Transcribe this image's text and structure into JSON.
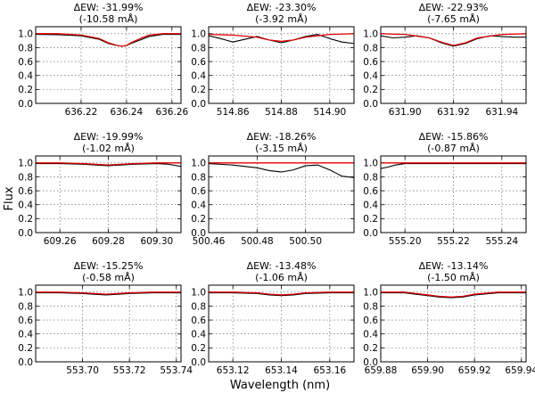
{
  "figure": {
    "ylabel": "Flux",
    "xlabel": "Wavelength (nm)"
  },
  "colors": {
    "observed": "#000000",
    "model": "#dd0000",
    "grid": "#555555",
    "axes": "#000000"
  },
  "chart_data": [
    {
      "type": "line",
      "title_line1": "ΔEW: -31.99%",
      "title_line2": "(-10.58 mÅ)",
      "xlim": [
        636.2,
        636.264
      ],
      "ylim": [
        0.0,
        1.1
      ],
      "xticks": [
        "636.22",
        "636.24",
        "636.26"
      ],
      "yticks": [
        "0.0",
        "0.2",
        "0.4",
        "0.6",
        "0.8",
        "1.0"
      ],
      "grid": true,
      "series": [
        {
          "x": [
            636.2,
            636.21,
            636.22,
            636.228,
            636.232,
            636.236,
            636.238,
            636.24,
            636.242,
            636.246,
            636.25,
            636.256,
            636.264
          ],
          "y": [
            0.99,
            0.985,
            0.97,
            0.92,
            0.86,
            0.83,
            0.82,
            0.83,
            0.86,
            0.91,
            0.96,
            0.99,
            0.99
          ]
        },
        {
          "x": [
            636.2,
            636.21,
            636.22,
            636.228,
            636.232,
            636.236,
            636.238,
            636.24,
            636.242,
            636.246,
            636.25,
            636.256,
            636.264
          ],
          "y": [
            1.0,
            1.0,
            0.98,
            0.93,
            0.87,
            0.83,
            0.82,
            0.83,
            0.87,
            0.93,
            0.98,
            1.0,
            1.0
          ]
        }
      ]
    },
    {
      "type": "line",
      "title_line1": "ΔEW: -23.30%",
      "title_line2": "(-3.92 mÅ)",
      "xlim": [
        514.85,
        514.91
      ],
      "ylim": [
        0.0,
        1.1
      ],
      "xticks": [
        "514.86",
        "514.88",
        "514.90"
      ],
      "yticks": [
        "0.0",
        "0.2",
        "0.4",
        "0.6",
        "0.8",
        "1.0"
      ],
      "grid": true,
      "series": [
        {
          "x": [
            514.85,
            514.855,
            514.86,
            514.865,
            514.87,
            514.875,
            514.88,
            514.885,
            514.89,
            514.895,
            514.9,
            514.905,
            514.91
          ],
          "y": [
            0.97,
            0.93,
            0.88,
            0.92,
            0.96,
            0.91,
            0.87,
            0.91,
            0.96,
            0.99,
            0.93,
            0.88,
            0.86
          ]
        },
        {
          "x": [
            514.85,
            514.86,
            514.87,
            514.875,
            514.88,
            514.885,
            514.89,
            514.9,
            514.91
          ],
          "y": [
            0.99,
            0.98,
            0.95,
            0.91,
            0.89,
            0.91,
            0.95,
            0.99,
            1.0
          ]
        }
      ]
    },
    {
      "type": "line",
      "title_line1": "ΔEW: -22.93%",
      "title_line2": "(-7.65 mÅ)",
      "xlim": [
        631.89,
        631.95
      ],
      "ylim": [
        0.0,
        1.1
      ],
      "xticks": [
        "631.90",
        "631.92",
        "631.94"
      ],
      "yticks": [
        "0.0",
        "0.2",
        "0.4",
        "0.6",
        "0.8",
        "1.0"
      ],
      "grid": true,
      "series": [
        {
          "x": [
            631.89,
            631.895,
            631.9,
            631.905,
            631.91,
            631.915,
            631.92,
            631.925,
            631.93,
            631.935,
            631.94,
            631.945,
            631.95
          ],
          "y": [
            0.97,
            0.94,
            0.95,
            0.97,
            0.94,
            0.87,
            0.82,
            0.86,
            0.93,
            0.97,
            0.96,
            0.95,
            0.95
          ]
        },
        {
          "x": [
            631.89,
            631.9,
            631.91,
            631.915,
            631.92,
            631.925,
            631.93,
            631.94,
            631.95
          ],
          "y": [
            1.0,
            0.99,
            0.94,
            0.88,
            0.83,
            0.87,
            0.94,
            0.99,
            1.0
          ]
        }
      ]
    },
    {
      "type": "line",
      "title_line1": "ΔEW: -19.99%",
      "title_line2": "(-1.02 mÅ)",
      "xlim": [
        609.25,
        609.31
      ],
      "ylim": [
        0.0,
        1.1
      ],
      "xticks": [
        "609.26",
        "609.28",
        "609.30"
      ],
      "yticks": [
        "0.0",
        "0.2",
        "0.4",
        "0.6",
        "0.8",
        "1.0"
      ],
      "grid": true,
      "series": [
        {
          "x": [
            609.25,
            609.26,
            609.27,
            609.275,
            609.28,
            609.285,
            609.29,
            609.3,
            609.305,
            609.31
          ],
          "y": [
            0.99,
            0.99,
            0.98,
            0.97,
            0.96,
            0.97,
            0.98,
            0.99,
            0.98,
            0.95
          ]
        },
        {
          "x": [
            609.25,
            609.26,
            609.27,
            609.275,
            609.28,
            609.285,
            609.29,
            609.3,
            609.31
          ],
          "y": [
            1.0,
            1.0,
            0.99,
            0.98,
            0.97,
            0.98,
            0.99,
            1.0,
            1.0
          ]
        }
      ]
    },
    {
      "type": "line",
      "title_line1": "ΔEW: -18.26%",
      "title_line2": "(-3.15 mÅ)",
      "xlim": [
        500.46,
        500.52
      ],
      "ylim": [
        0.0,
        1.1
      ],
      "xticks": [
        "500.46",
        "500.48",
        "500.50"
      ],
      "yticks": [
        "0.0",
        "0.2",
        "0.4",
        "0.6",
        "0.8",
        "1.0"
      ],
      "grid": true,
      "series": [
        {
          "x": [
            500.46,
            500.465,
            500.47,
            500.48,
            500.485,
            500.49,
            500.495,
            500.5,
            500.505,
            500.51,
            500.515,
            500.52
          ],
          "y": [
            0.99,
            0.98,
            0.97,
            0.93,
            0.89,
            0.87,
            0.9,
            0.96,
            0.97,
            0.9,
            0.81,
            0.79
          ]
        },
        {
          "x": [
            500.46,
            500.47,
            500.48,
            500.49,
            500.5,
            500.51,
            500.52
          ],
          "y": [
            1.0,
            1.0,
            1.0,
            1.0,
            1.0,
            1.0,
            1.0
          ]
        }
      ]
    },
    {
      "type": "line",
      "title_line1": "ΔEW: -15.86%",
      "title_line2": "(-0.87 mÅ)",
      "xlim": [
        555.19,
        555.25
      ],
      "ylim": [
        0.0,
        1.1
      ],
      "xticks": [
        "555.20",
        "555.22",
        "555.24"
      ],
      "yticks": [
        "0.0",
        "0.2",
        "0.4",
        "0.6",
        "0.8",
        "1.0"
      ],
      "grid": true,
      "series": [
        {
          "x": [
            555.19,
            555.193,
            555.196,
            555.2,
            555.205,
            555.21,
            555.22,
            555.23,
            555.24,
            555.25
          ],
          "y": [
            0.92,
            0.94,
            0.97,
            0.99,
            0.99,
            0.99,
            0.99,
            0.99,
            0.99,
            0.99
          ]
        },
        {
          "x": [
            555.19,
            555.2,
            555.21,
            555.22,
            555.23,
            555.24,
            555.25
          ],
          "y": [
            1.0,
            1.0,
            1.0,
            1.0,
            1.0,
            1.0,
            1.0
          ]
        }
      ]
    },
    {
      "type": "line",
      "title_line1": "ΔEW: -15.25%",
      "title_line2": "(-0.58 mÅ)",
      "xlim": [
        553.68,
        553.742
      ],
      "ylim": [
        0.0,
        1.1
      ],
      "xticks": [
        "553.70",
        "553.72",
        "553.74"
      ],
      "yticks": [
        "0.0",
        "0.2",
        "0.4",
        "0.6",
        "0.8",
        "1.0"
      ],
      "grid": true,
      "series": [
        {
          "x": [
            553.68,
            553.69,
            553.7,
            553.705,
            553.71,
            553.715,
            553.72,
            553.73,
            553.742
          ],
          "y": [
            0.99,
            0.99,
            0.98,
            0.97,
            0.96,
            0.97,
            0.98,
            0.99,
            0.99
          ]
        },
        {
          "x": [
            553.68,
            553.69,
            553.7,
            553.705,
            553.71,
            553.715,
            553.72,
            553.73,
            553.742
          ],
          "y": [
            1.0,
            1.0,
            0.99,
            0.98,
            0.97,
            0.98,
            0.99,
            1.0,
            1.0
          ]
        }
      ]
    },
    {
      "type": "line",
      "title_line1": "ΔEW: -13.48%",
      "title_line2": "(-1.06 mÅ)",
      "xlim": [
        653.11,
        653.17
      ],
      "ylim": [
        0.0,
        1.1
      ],
      "xticks": [
        "653.12",
        "653.14",
        "653.16"
      ],
      "yticks": [
        "0.0",
        "0.2",
        "0.4",
        "0.6",
        "0.8",
        "1.0"
      ],
      "grid": true,
      "series": [
        {
          "x": [
            653.11,
            653.12,
            653.13,
            653.135,
            653.14,
            653.145,
            653.15,
            653.16,
            653.17
          ],
          "y": [
            0.99,
            0.99,
            0.98,
            0.96,
            0.95,
            0.96,
            0.98,
            0.99,
            0.99
          ]
        },
        {
          "x": [
            653.11,
            653.12,
            653.13,
            653.135,
            653.14,
            653.145,
            653.15,
            653.16,
            653.17
          ],
          "y": [
            1.0,
            1.0,
            0.99,
            0.97,
            0.96,
            0.97,
            0.99,
            1.0,
            1.0
          ]
        }
      ]
    },
    {
      "type": "line",
      "title_line1": "ΔEW: -13.14%",
      "title_line2": "(-1.50 mÅ)",
      "xlim": [
        659.88,
        659.942
      ],
      "ylim": [
        0.0,
        1.1
      ],
      "xticks": [
        "659.88",
        "659.90",
        "659.92",
        "659.94"
      ],
      "yticks": [
        "0.0",
        "0.2",
        "0.4",
        "0.6",
        "0.8",
        "1.0"
      ],
      "grid": true,
      "series": [
        {
          "x": [
            659.88,
            659.89,
            659.895,
            659.9,
            659.905,
            659.91,
            659.915,
            659.92,
            659.93,
            659.942
          ],
          "y": [
            0.99,
            0.99,
            0.97,
            0.95,
            0.93,
            0.92,
            0.93,
            0.96,
            0.99,
            0.99
          ]
        },
        {
          "x": [
            659.88,
            659.89,
            659.895,
            659.9,
            659.905,
            659.91,
            659.915,
            659.92,
            659.93,
            659.942
          ],
          "y": [
            1.0,
            1.0,
            0.98,
            0.96,
            0.94,
            0.93,
            0.94,
            0.97,
            1.0,
            1.0
          ]
        }
      ]
    }
  ]
}
